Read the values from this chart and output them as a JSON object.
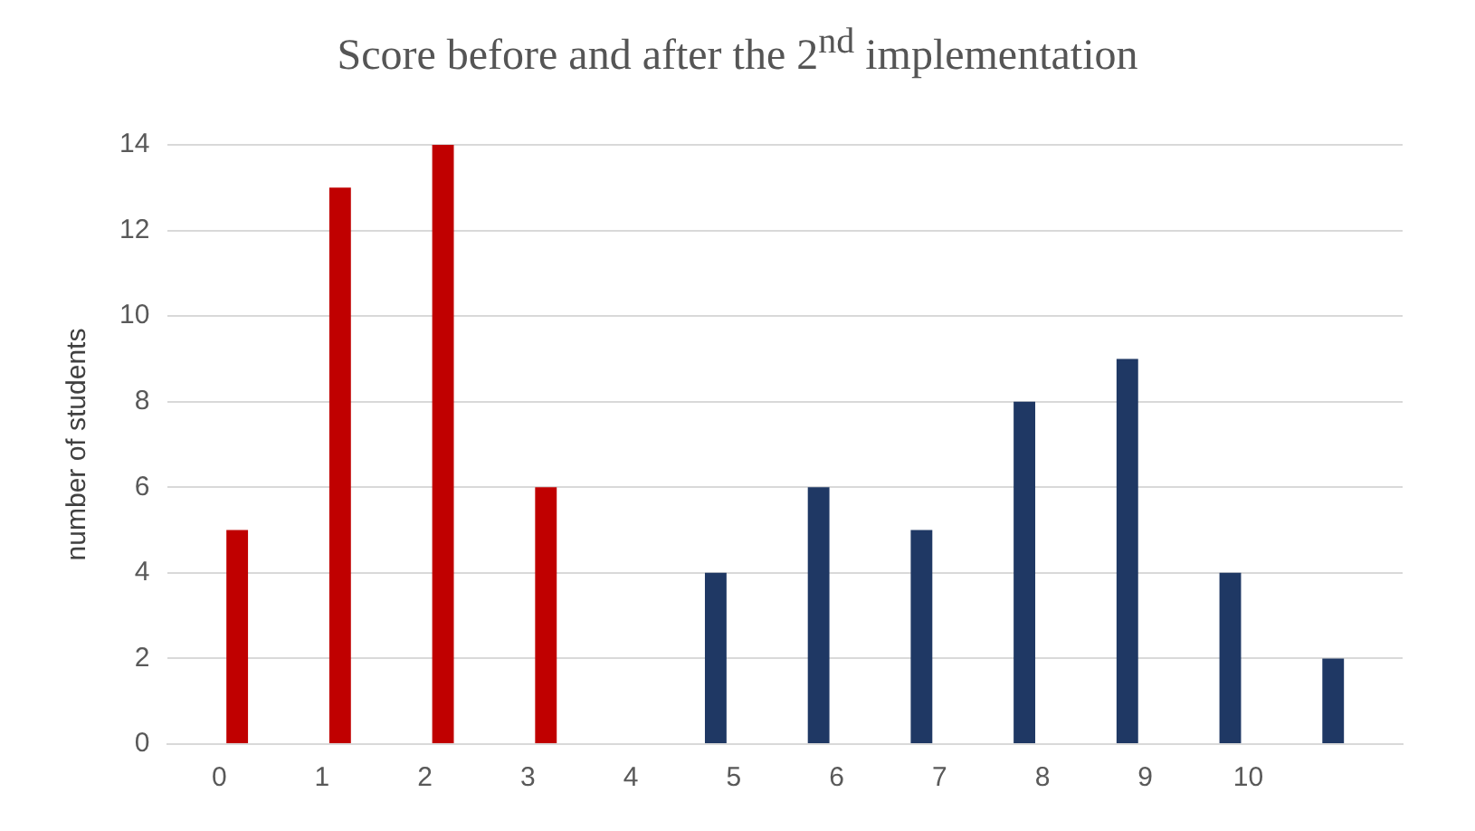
{
  "chart_data": {
    "type": "bar",
    "title": "Score before and after the 2$^{nd}$ implementation",
    "ylabel": "number of students",
    "categories": [
      "0",
      "1",
      "2",
      "3",
      "4",
      "5",
      "6",
      "7",
      "8",
      "9",
      "10",
      null
    ],
    "series": [
      {
        "color": "#1f3864",
        "values": [
          0,
          0,
          0,
          0,
          0,
          4,
          6,
          5,
          8,
          9,
          4,
          2
        ]
      },
      {
        "color": "#c00000",
        "values": [
          5,
          13,
          14,
          6,
          0,
          0,
          0,
          0,
          0,
          0,
          0,
          null
        ]
      }
    ],
    "ylim": [
      0,
      14
    ],
    "yticks": [
      0,
      2,
      4,
      6,
      8,
      10,
      12,
      14
    ],
    "grid": "y",
    "legend": false
  }
}
